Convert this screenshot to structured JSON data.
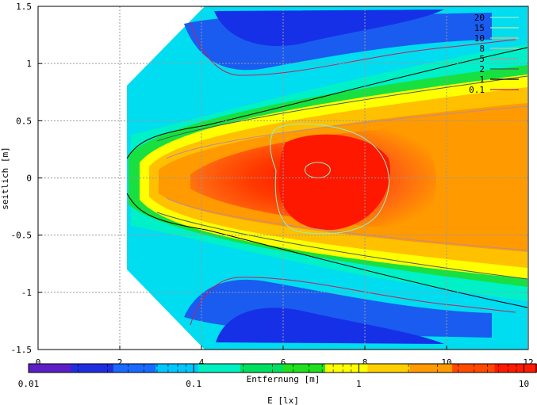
{
  "chart_data": {
    "type": "heatmap",
    "title": "",
    "xlabel": "Entfernung [m]",
    "ylabel": "seitlich [m]",
    "colorbar_label": "E [lx]",
    "xlim": [
      0,
      12
    ],
    "ylim": [
      -1.5,
      1.5
    ],
    "x_ticks": [
      "0",
      "2",
      "4",
      "6",
      "8",
      "10",
      "12"
    ],
    "y_ticks": [
      "1.5",
      "1",
      "0.5",
      "0",
      "-0.5",
      "-1",
      "-1.5"
    ],
    "grid": true,
    "colorbar": {
      "scale": "log",
      "range": [
        0.01,
        12
      ],
      "ticks": [
        "0.01",
        "0.1",
        "1",
        "10"
      ],
      "colors": [
        "#5b1fc8",
        "#1f2fe0",
        "#1a6aff",
        "#00c8ff",
        "#00f0c0",
        "#00e060",
        "#20e020",
        "#ffff00",
        "#ffd000",
        "#ff9a00",
        "#ff4a00",
        "#ff1a00"
      ]
    },
    "legend": {
      "position": "top-right",
      "entries": [
        {
          "label": "20",
          "color": "#8cf3c5"
        },
        {
          "label": "15",
          "color": "#c8e890"
        },
        {
          "label": "10",
          "color": "#f0c060"
        },
        {
          "label": "8",
          "color": "#e6b7a3"
        },
        {
          "label": "5",
          "color": "#b88c9c"
        },
        {
          "label": "2",
          "color": "#406050"
        },
        {
          "label": "1",
          "color": "#000000"
        },
        {
          "label": "0.1",
          "color": "#c02060"
        }
      ]
    }
  }
}
